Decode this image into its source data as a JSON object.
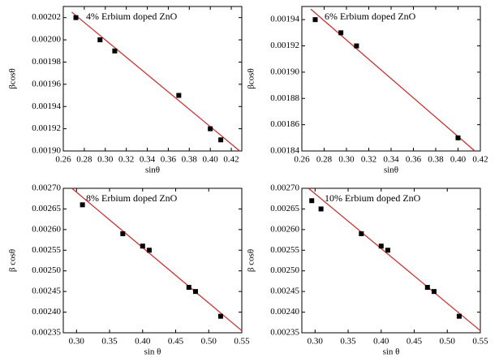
{
  "chart_data": [
    {
      "type": "scatter",
      "title": "4% Erbium doped ZnO",
      "xlabel": "sinθ",
      "ylabel": "βcosθ",
      "x": [
        0.272,
        0.295,
        0.309,
        0.37,
        0.4,
        0.41
      ],
      "y": [
        0.00202,
        0.002,
        0.00199,
        0.00195,
        0.00192,
        0.00191
      ],
      "color": "#000000",
      "fit_line": {
        "x": [
          0.268,
          0.428
        ],
        "y": [
          0.002025,
          0.0019
        ],
        "color": "#d62728"
      },
      "xlim": [
        0.26,
        0.43
      ],
      "ylim": [
        0.0019,
        0.00203
      ],
      "xticks": [
        0.26,
        0.28,
        {
          "value": 0.3,
          "label": "0.30"
        },
        0.32,
        0.34,
        0.36,
        0.38,
        {
          "value": 0.4,
          "label": "0.40"
        },
        0.42
      ],
      "yticks": [
        {
          "value": 0.0019,
          "label": "0.00190"
        },
        0.00192,
        0.00194,
        0.00196,
        0.00198,
        {
          "value": 0.002,
          "label": "0.00200"
        },
        0.00202
      ]
    },
    {
      "type": "scatter",
      "title": "6% Erbium doped ZnO",
      "xlabel": "sinθ",
      "ylabel": "βcosθ",
      "x": [
        0.272,
        0.295,
        0.309,
        0.4
      ],
      "y": [
        0.00194,
        0.00193,
        0.00192,
        0.00185
      ],
      "color": "#000000",
      "fit_line": {
        "x": [
          0.268,
          0.415
        ],
        "y": [
          0.001948,
          0.00184
        ],
        "color": "#d62728"
      },
      "xlim": [
        0.26,
        0.42
      ],
      "ylim": [
        0.00184,
        0.00195
      ],
      "xticks": [
        0.26,
        0.28,
        {
          "value": 0.3,
          "label": "0.30"
        },
        0.32,
        0.34,
        0.36,
        0.38,
        {
          "value": 0.4,
          "label": "0.40"
        },
        0.42
      ],
      "yticks": [
        0.00184,
        0.00186,
        0.00188,
        {
          "value": 0.0019,
          "label": "0.00190"
        },
        0.00192,
        0.00194
      ]
    },
    {
      "type": "scatter",
      "title": "8% Erbium doped ZnO",
      "xlabel": "sin θ",
      "ylabel": "β cosθ",
      "x": [
        0.309,
        0.37,
        0.4,
        0.41,
        0.47,
        0.48,
        0.518
      ],
      "y": [
        0.00266,
        0.00259,
        0.00256,
        0.00255,
        0.00246,
        0.00245,
        0.00239
      ],
      "color": "#000000",
      "fit_line": {
        "x": [
          0.293,
          0.55
        ],
        "y": [
          0.0027,
          0.002355
        ],
        "color": "#d62728"
      },
      "xlim": [
        0.28,
        0.55
      ],
      "ylim": [
        0.00235,
        0.0027
      ],
      "xticks": [
        {
          "value": 0.3,
          "label": "0.30"
        },
        0.35,
        {
          "value": 0.4,
          "label": "0.40"
        },
        0.45,
        {
          "value": 0.5,
          "label": "0.50"
        },
        0.55
      ],
      "yticks": [
        0.00235,
        {
          "value": 0.0024,
          "label": "0.00240"
        },
        0.00245,
        {
          "value": 0.0025,
          "label": "0.00250"
        },
        0.00255,
        {
          "value": 0.0026,
          "label": "0.00260"
        },
        0.00265,
        {
          "value": 0.0027,
          "label": "0.00270"
        }
      ]
    },
    {
      "type": "scatter",
      "title": "10% Erbium doped ZnO",
      "xlabel": "sin θ",
      "ylabel": "β cosθ",
      "x": [
        0.295,
        0.309,
        0.37,
        0.4,
        0.41,
        0.47,
        0.48,
        0.518
      ],
      "y": [
        0.00267,
        0.00265,
        0.00259,
        0.00256,
        0.00255,
        0.00246,
        0.00245,
        0.00239
      ],
      "color": "#000000",
      "fit_line": {
        "x": [
          0.29,
          0.55
        ],
        "y": [
          0.0027,
          0.002355
        ],
        "color": "#d62728"
      },
      "xlim": [
        0.28,
        0.55
      ],
      "ylim": [
        0.00235,
        0.0027
      ],
      "xticks": [
        {
          "value": 0.3,
          "label": "0.30"
        },
        0.35,
        {
          "value": 0.4,
          "label": "0.40"
        },
        0.45,
        {
          "value": 0.5,
          "label": "0.50"
        },
        0.55
      ],
      "yticks": [
        0.00235,
        {
          "value": 0.0024,
          "label": "0.00240"
        },
        0.00245,
        {
          "value": 0.0025,
          "label": "0.00250"
        },
        0.00255,
        {
          "value": 0.0026,
          "label": "0.00260"
        },
        0.00265,
        {
          "value": 0.0027,
          "label": "0.00270"
        }
      ]
    }
  ]
}
